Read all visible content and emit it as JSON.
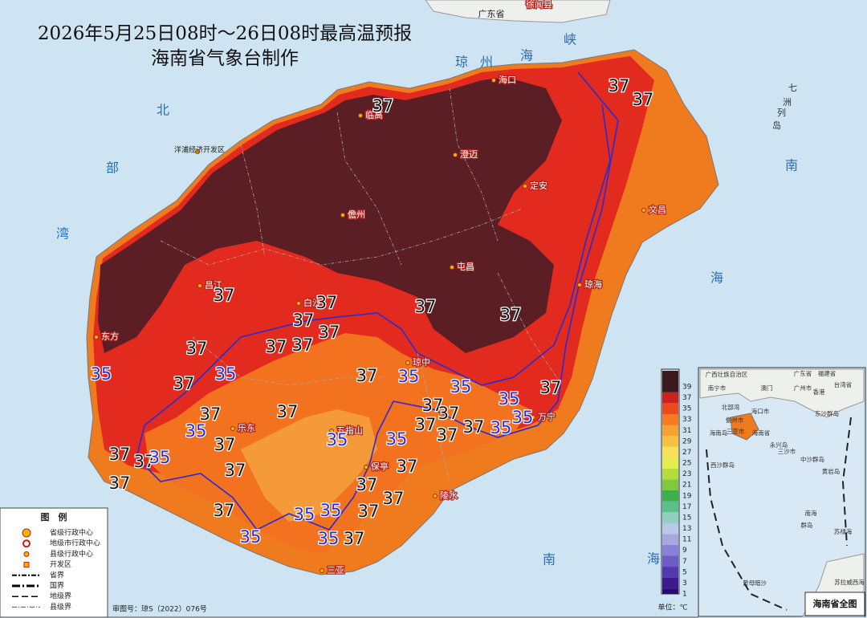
{
  "title": "2026年5月25日08时～26日08时最高温预报",
  "subtitle": "海南省气象台制作",
  "sea_labels": [
    "琼州海峡",
    "北部湾",
    "南海",
    "南海",
    "七洲列岛"
  ],
  "neighbors": [
    "广东省",
    "徐闻县"
  ],
  "places": [
    "海口",
    "临高",
    "澄迈",
    "定安",
    "洋浦经济开发区",
    "儋州",
    "文昌",
    "屯昌",
    "昌江",
    "琼海",
    "白沙",
    "东方",
    "琼中",
    "万宁",
    "乐东",
    "五指山",
    "保亭",
    "陵水",
    "三亚"
  ],
  "contour_labels": {
    "hot": [
      "37",
      "37",
      "37",
      "37",
      "37",
      "37",
      "37",
      "37",
      "37",
      "37",
      "37",
      "37",
      "37",
      "37",
      "37",
      "37",
      "37",
      "37",
      "37",
      "37",
      "37",
      "37",
      "37",
      "37",
      "37",
      "37",
      "37",
      "37",
      "37",
      "37",
      "37",
      "37",
      "37"
    ],
    "warm": [
      "35",
      "35",
      "35",
      "35",
      "35",
      "35",
      "35",
      "35",
      "35",
      "35",
      "35",
      "35",
      "35",
      "35",
      "35"
    ]
  },
  "colorbar": {
    "ticks": [
      1,
      3,
      5,
      7,
      9,
      11,
      13,
      15,
      17,
      19,
      21,
      23,
      25,
      27,
      29,
      31,
      33,
      35,
      37,
      39
    ],
    "colors": [
      "#2a0a6e",
      "#3b1b8f",
      "#5438b0",
      "#6d5bc6",
      "#8a82d6",
      "#a8a8e0",
      "#b8c8e8",
      "#8fd0c0",
      "#5cc08a",
      "#3cb04a",
      "#80c83c",
      "#b4dc3c",
      "#e6ec4a",
      "#f8e15a",
      "#f8c040",
      "#f8a030",
      "#f57a20",
      "#ec4a1c",
      "#d0201e",
      "#3c1a1c"
    ],
    "unit": "单位：℃"
  },
  "legend": {
    "title": "图　例",
    "items": [
      "省级行政中心",
      "地级市行政中心",
      "县级行政中心",
      "开发区",
      "省界",
      "国界",
      "地级界",
      "县级界"
    ]
  },
  "approval": "审图号：琼S（2022）076号",
  "inset": {
    "title": "海南省全图",
    "labels": [
      "广西壮族自治区",
      "广东省",
      "福建省",
      "台湾省",
      "南宁市",
      "广州市",
      "澳门",
      "香港",
      "北部湾",
      "海口市",
      "儋州市",
      "三亚市",
      "海南岛",
      "海南省",
      "东沙群岛",
      "西沙群岛",
      "永兴岛",
      "三沙市",
      "中沙群岛",
      "黄岩岛",
      "南海",
      "群岛",
      "苏禄海",
      "曾母暗沙",
      "苏拉威西海"
    ]
  }
}
